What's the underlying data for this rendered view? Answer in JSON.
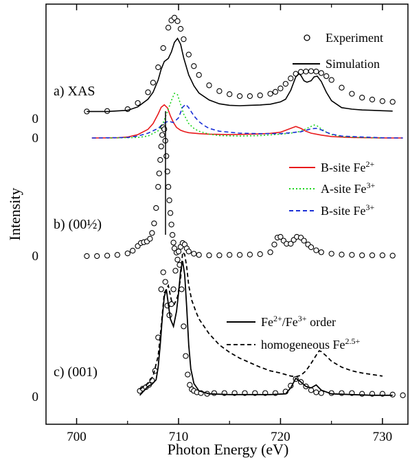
{
  "chart_data": {
    "type": "line",
    "xlabel": "Photon Energy (eV)",
    "ylabel": "Intensity",
    "xlim": [
      697,
      732.5
    ],
    "x_ticks": [
      700,
      710,
      720,
      730
    ],
    "panels": [
      {
        "label": "a) XAS",
        "zero_labels": [
          "0",
          "0"
        ],
        "legend": [
          {
            "name": "Experiment",
            "style": "circles"
          },
          {
            "name": "Simulation",
            "style": "solid"
          },
          {
            "name": "B-site Fe",
            "sup": "2+",
            "style": "solid",
            "color": "#e8191b"
          },
          {
            "name": "A-site Fe",
            "sup": "3+",
            "style": "dotted",
            "color": "#1cd41c"
          },
          {
            "name": "B-site Fe",
            "sup": "3+",
            "style": "dashed",
            "color": "#1a2fd6"
          }
        ],
        "series": [
          {
            "name": "Experiment",
            "style": "circles",
            "color": "#000000",
            "x": [
              701,
              703,
              705,
              706,
              707,
              707.5,
              708,
              708.5,
              709,
              709.3,
              709.6,
              709.9,
              710.2,
              710.5,
              711,
              711.5,
              712,
              713,
              714,
              715,
              716,
              717,
              718,
              719,
              719.5,
              720,
              720.5,
              721,
              721.5,
              722,
              722.5,
              723,
              723.5,
              724,
              724.5,
              725,
              726,
              727,
              728,
              729,
              730,
              731
            ],
            "y": [
              1.0,
              1.1,
              1.6,
              3.2,
              6.0,
              8.5,
              12.5,
              17.5,
              22.8,
              24.7,
              25.4,
              24.5,
              22.5,
              19.8,
              15.8,
              12.8,
              10.5,
              7.8,
              6.3,
              5.5,
              5.0,
              5.0,
              5.2,
              5.6,
              6.1,
              7.0,
              8.2,
              9.6,
              10.8,
              11.3,
              11.4,
              11.5,
              11.4,
              11.0,
              10.2,
              9.2,
              7.2,
              5.6,
              4.6,
              4.1,
              3.7,
              3.5
            ]
          },
          {
            "name": "Simulation",
            "style": "solid",
            "color": "#000000",
            "x": [
              701,
              703,
              705,
              706,
              707,
              707.5,
              708,
              708.3,
              708.6,
              709,
              709.3,
              709.6,
              709.9,
              710.2,
              710.5,
              711,
              711.5,
              712,
              713,
              714,
              715,
              716,
              717,
              718,
              719,
              720,
              720.5,
              721,
              721.5,
              721.8,
              722,
              722.3,
              722.6,
              723,
              723.3,
              723.6,
              724,
              724.5,
              725,
              726,
              727,
              728,
              729,
              730,
              731
            ],
            "y": [
              1.0,
              1.0,
              1.3,
              2.2,
              4.2,
              6.0,
              9.2,
              12.0,
              14.0,
              14.8,
              16.5,
              19.0,
              20.0,
              18.5,
              15.0,
              10.5,
              7.7,
              5.8,
              4.0,
              3.0,
              2.6,
              2.5,
              2.6,
              2.7,
              2.9,
              3.5,
              4.2,
              6.5,
              10.0,
              10.8,
              10.4,
              9.0,
              8.6,
              9.0,
              10.0,
              10.2,
              8.8,
              6.0,
              3.8,
              2.0,
              1.6,
              1.4,
              1.3,
              1.2,
              1.1
            ]
          },
          {
            "name": "B-site Fe2+",
            "style": "solid",
            "color": "#e8191b",
            "x": [
              701.5,
              704,
              705,
              706,
              707,
              707.5,
              708,
              708.3,
              708.6,
              708.9,
              709.2,
              709.5,
              709.8,
              710.2,
              710.6,
              711,
              712,
              713,
              715,
              716,
              717,
              718,
              719,
              720,
              721,
              721.5,
              722,
              722.5,
              723,
              724,
              725,
              727,
              730,
              732
            ],
            "y": [
              0,
              0.05,
              0.2,
              0.7,
              1.8,
              3.0,
              5.0,
              6.4,
              6.9,
              6.3,
              4.6,
              3.2,
              2.2,
              1.6,
              1.3,
              1.1,
              0.9,
              0.8,
              0.7,
              0.75,
              0.8,
              0.85,
              0.95,
              1.2,
              2.0,
              2.4,
              2.0,
              1.4,
              1.0,
              0.6,
              0.3,
              0.1,
              0.02,
              0
            ]
          },
          {
            "name": "A-site Fe3+",
            "style": "dotted",
            "color": "#1cd41c",
            "x": [
              703,
              706,
              707,
              708,
              708.5,
              709,
              709.3,
              709.6,
              709.9,
              710.2,
              710.5,
              711,
              711.5,
              712,
              713,
              714,
              716,
              718,
              720,
              721,
              722,
              722.5,
              723,
              723.3,
              723.6,
              724,
              724.5,
              725,
              726,
              728,
              730
            ],
            "y": [
              0,
              0.1,
              0.4,
              1.5,
              3.2,
              6.0,
              7.8,
              9.3,
              9.0,
              7.0,
              5.0,
              3.0,
              2.0,
              1.4,
              0.8,
              0.5,
              0.4,
              0.5,
              0.8,
              1.0,
              1.4,
              1.9,
              2.4,
              2.7,
              2.5,
              1.9,
              1.2,
              0.7,
              0.3,
              0.1,
              0
            ]
          },
          {
            "name": "B-site Fe3+",
            "style": "dashed",
            "color": "#1a2fd6",
            "x": [
              701.5,
              705,
              706,
              707,
              708,
              708.5,
              709,
              709.5,
              710,
              710.4,
              710.7,
              711,
              711.5,
              712,
              712.5,
              713,
              714,
              716,
              718,
              720,
              721,
              722,
              722.5,
              723,
              723.5,
              724,
              724.5,
              725,
              726,
              728,
              730,
              732
            ],
            "y": [
              0,
              0.1,
              0.4,
              1.0,
              2.0,
              3.0,
              3.5,
              3.2,
              4.2,
              6.4,
              7.0,
              6.3,
              4.6,
              3.4,
              2.6,
              2.0,
              1.4,
              1.0,
              0.9,
              0.9,
              1.1,
              1.3,
              1.6,
              1.9,
              2.0,
              1.7,
              1.2,
              0.8,
              0.4,
              0.2,
              0.05,
              0
            ]
          }
        ]
      },
      {
        "label": "b) (00½)",
        "zero_labels": [
          "0"
        ],
        "series": [
          {
            "name": "Experiment",
            "style": "circles",
            "color": "#000000",
            "x": [
              701,
              702,
              703,
              704,
              705,
              705.5,
              706,
              706.3,
              706.6,
              706.9,
              707.2,
              707.4,
              707.6,
              707.8,
              708,
              708.1,
              708.2,
              708.3,
              708.4,
              708.5,
              708.6,
              708.7,
              708.8,
              708.9,
              709,
              709.1,
              709.2,
              709.3,
              709.4,
              709.5,
              709.6,
              709.8,
              710,
              710.2,
              710.4,
              710.6,
              710.8,
              711,
              711.5,
              712,
              713,
              714,
              715,
              716,
              717,
              718,
              719,
              719.4,
              719.7,
              720,
              720.3,
              720.6,
              721,
              721.3,
              721.6,
              722,
              722.3,
              722.7,
              723,
              723.5,
              724,
              725,
              726,
              727,
              728,
              729,
              730,
              731
            ],
            "y": [
              0.0,
              0.0,
              0.1,
              0.3,
              0.7,
              1.4,
              2.6,
              3.4,
              3.6,
              3.8,
              4.5,
              6.0,
              8.5,
              12.5,
              18.0,
              21.5,
              25.0,
              28.5,
              31.5,
              33.5,
              33.0,
              30.0,
              26.0,
              22.0,
              18.0,
              14.5,
              11.2,
              8.2,
              5.5,
              3.5,
              2.0,
              0.9,
              1.2,
              2.4,
              3.4,
              3.0,
              2.0,
              1.2,
              0.6,
              0.3,
              0.2,
              0.2,
              0.3,
              0.3,
              0.4,
              0.5,
              1.0,
              3.0,
              4.8,
              5.0,
              4.0,
              3.2,
              3.2,
              4.2,
              5.0,
              4.8,
              4.0,
              3.0,
              2.3,
              1.5,
              1.0,
              0.6,
              0.4,
              0.3,
              0.2,
              0.2,
              0.2,
              0.1
            ]
          }
        ]
      },
      {
        "label": "c) (001)",
        "zero_labels": [
          "0"
        ],
        "legend": [
          {
            "name": "Fe",
            "sup": "2+",
            "name2": "/Fe",
            "sup2": "3+",
            "tail": " order",
            "style": "solid"
          },
          {
            "name": "homogeneous Fe",
            "sup": "2.5+",
            "style": "dashed"
          }
        ],
        "series": [
          {
            "name": "Experiment",
            "style": "circles",
            "color": "#000000",
            "x": [
              706.2,
              706.5,
              706.8,
              707.1,
              707.4,
              707.7,
              708,
              708.3,
              708.5,
              708.7,
              708.9,
              709.1,
              709.3,
              709.5,
              709.7,
              709.9,
              710.1,
              710.3,
              710.5,
              710.7,
              710.9,
              711.1,
              711.3,
              711.5,
              711.8,
              712.2,
              712.8,
              713.5,
              714.5,
              715.5,
              716.5,
              717.5,
              718.5,
              719.5,
              720.5,
              721,
              721.5,
              722,
              722.5,
              723,
              723.5,
              724,
              725,
              726,
              727,
              728,
              729,
              730,
              731,
              732
            ],
            "y": [
              0.8,
              1.1,
              1.3,
              1.6,
              2.2,
              3.5,
              8.0,
              14.5,
              16.8,
              15.5,
              12.3,
              11.0,
              12.5,
              14.5,
              17.0,
              18.5,
              17.8,
              14.5,
              9.5,
              5.5,
              3.0,
              1.6,
              1.0,
              0.8,
              0.6,
              0.5,
              0.4,
              0.5,
              0.5,
              0.5,
              0.5,
              0.5,
              0.5,
              0.5,
              0.7,
              1.5,
              2.4,
              2.0,
              1.4,
              0.9,
              0.6,
              0.5,
              0.5,
              0.5,
              0.5,
              0.4,
              0.4,
              0.4,
              0.3,
              0.2
            ]
          },
          {
            "name": "Fe2+/Fe3+ order",
            "style": "solid",
            "color": "#000000",
            "x": [
              706.2,
              706.6,
              707,
              707.4,
              707.8,
              708,
              708.2,
              708.4,
              708.6,
              708.8,
              709,
              709.2,
              709.5,
              709.8,
              710,
              710.2,
              710.4,
              710.6,
              710.8,
              711,
              711.2,
              711.5,
              712,
              713,
              715,
              717,
              719,
              720.5,
              721,
              721.5,
              722,
              722.5,
              723,
              723.5,
              724,
              725,
              727,
              729,
              731
            ],
            "y": [
              0.2,
              0.8,
              1.4,
              1.7,
              2.3,
              4.0,
              7.0,
              10.5,
              13.5,
              14.5,
              12.5,
              10.5,
              9.5,
              11.5,
              14.0,
              17.0,
              18.3,
              16.5,
              12.0,
              7.0,
              3.8,
              1.8,
              0.8,
              0.4,
              0.3,
              0.3,
              0.3,
              0.4,
              1.2,
              2.5,
              2.0,
              1.4,
              1.2,
              1.6,
              0.9,
              0.4,
              0.3,
              0.2,
              0.2
            ]
          },
          {
            "name": "homogeneous Fe2.5+",
            "style": "dashed",
            "color": "#000000",
            "x": [
              706.2,
              707,
              707.5,
              708,
              708.3,
              708.6,
              709,
              709.3,
              709.6,
              709.9,
              710.2,
              710.4,
              710.6,
              710.8,
              711,
              711.3,
              711.7,
              712,
              712.5,
              713,
              714,
              715,
              716,
              717,
              718,
              719,
              720,
              720.5,
              721,
              721.5,
              722,
              722.5,
              723,
              723.5,
              723.8,
              724,
              724.5,
              725,
              726,
              727,
              728,
              729,
              730
            ],
            "y": [
              1.0,
              1.8,
              2.8,
              5.5,
              9.5,
              14.0,
              15.0,
              13.0,
              12.5,
              13.5,
              16.0,
              19.5,
              19.2,
              17.5,
              15.0,
              13.0,
              11.5,
              10.5,
              9.5,
              8.5,
              7.0,
              6.0,
              5.2,
              4.6,
              4.0,
              3.5,
              3.2,
              3.0,
              2.8,
              2.7,
              2.9,
              3.5,
              4.5,
              5.6,
              6.2,
              6.1,
              5.5,
              4.8,
              4.0,
              3.5,
              3.2,
              3.0,
              2.8
            ]
          }
        ]
      }
    ]
  }
}
